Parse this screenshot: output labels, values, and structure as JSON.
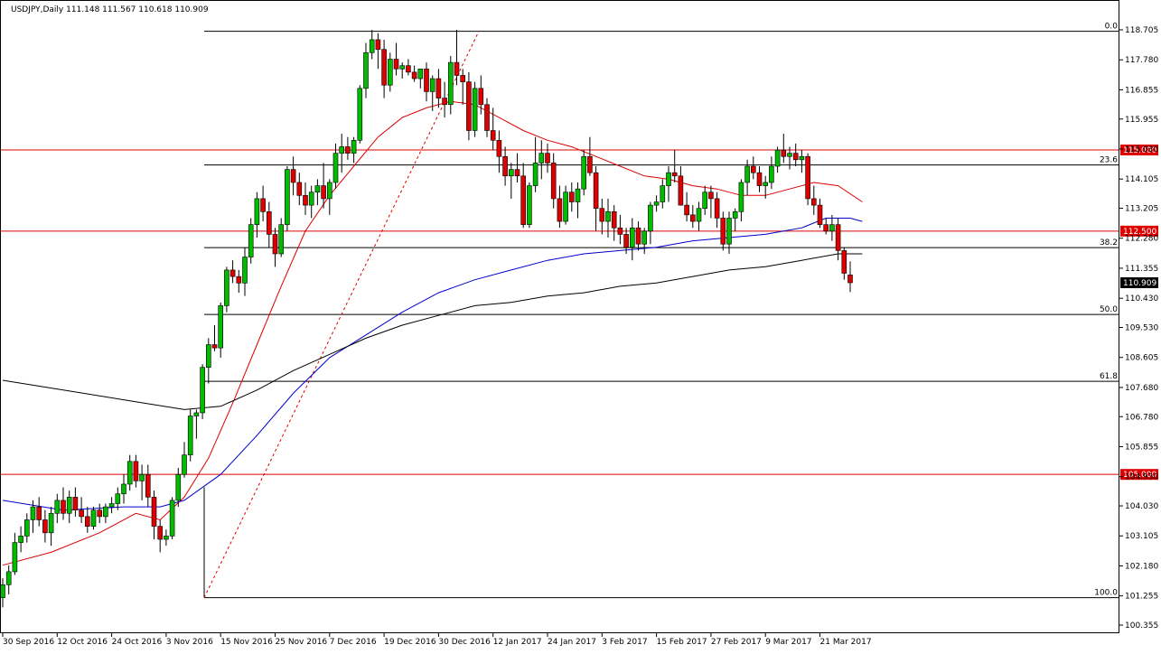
{
  "chart_data": {
    "type": "candlestick",
    "title": "USDJPY,Daily  111.148 111.567 110.618 110.909",
    "symbol": "USDJPY",
    "timeframe": "Daily",
    "ohlc_header": {
      "open": 111.148,
      "high": 111.567,
      "low": 110.618,
      "close": 110.909
    },
    "ylim": [
      100.0,
      118.9
    ],
    "y_tick_labels": [
      "118.705",
      "117.780",
      "116.855",
      "115.955",
      "115.030",
      "114.105",
      "113.205",
      "112.280",
      "111.355",
      "110.430",
      "109.530",
      "108.605",
      "107.680",
      "106.780",
      "105.855",
      "104.930",
      "104.030",
      "103.105",
      "102.180",
      "101.255",
      "100.355"
    ],
    "x_tick_labels": [
      "30 Sep 2016",
      "12 Oct 2016",
      "24 Oct 2016",
      "3 Nov 2016",
      "15 Nov 2016",
      "25 Nov 2016",
      "7 Dec 2016",
      "19 Dec 2016",
      "30 Dec 2016",
      "12 Jan 2017",
      "24 Jan 2017",
      "3 Feb 2017",
      "15 Feb 2017",
      "27 Feb 2017",
      "9 Mar 2017",
      "21 Mar 2017"
    ],
    "bull_color": "#00bb00",
    "bear_color": "#dd0000",
    "candles": [
      [
        101.2,
        101.8,
        100.9,
        101.6
      ],
      [
        101.6,
        102.2,
        101.3,
        102.0
      ],
      [
        102.0,
        103.2,
        101.9,
        102.9
      ],
      [
        102.9,
        103.4,
        102.6,
        103.1
      ],
      [
        103.1,
        103.8,
        102.9,
        103.6
      ],
      [
        103.6,
        104.2,
        103.2,
        104.0
      ],
      [
        104.0,
        104.3,
        103.4,
        103.6
      ],
      [
        103.6,
        103.9,
        102.9,
        103.2
      ],
      [
        103.2,
        104.0,
        102.8,
        103.8
      ],
      [
        103.8,
        104.4,
        103.5,
        104.2
      ],
      [
        104.2,
        104.6,
        103.6,
        103.8
      ],
      [
        103.8,
        104.5,
        103.5,
        104.3
      ],
      [
        104.3,
        104.6,
        103.7,
        103.9
      ],
      [
        103.9,
        104.3,
        103.5,
        103.7
      ],
      [
        103.7,
        104.0,
        103.2,
        103.4
      ],
      [
        103.4,
        104.0,
        103.3,
        103.9
      ],
      [
        103.9,
        104.1,
        103.5,
        103.7
      ],
      [
        103.7,
        104.1,
        103.5,
        104.0
      ],
      [
        104.0,
        104.3,
        103.8,
        104.1
      ],
      [
        104.1,
        104.6,
        103.9,
        104.4
      ],
      [
        104.4,
        105.0,
        104.1,
        104.7
      ],
      [
        104.7,
        105.6,
        104.5,
        105.4
      ],
      [
        105.4,
        105.6,
        104.6,
        104.8
      ],
      [
        104.8,
        105.3,
        104.2,
        105.0
      ],
      [
        105.0,
        105.3,
        104.0,
        104.3
      ],
      [
        104.3,
        104.5,
        103.0,
        103.4
      ],
      [
        103.4,
        103.6,
        102.6,
        103.0
      ],
      [
        103.0,
        103.3,
        102.8,
        103.1
      ],
      [
        103.1,
        104.3,
        103.0,
        104.2
      ],
      [
        104.2,
        105.2,
        104.0,
        105.0
      ],
      [
        105.0,
        106.0,
        104.9,
        105.6
      ],
      [
        105.6,
        107.0,
        105.4,
        106.8
      ],
      [
        106.8,
        107.0,
        106.1,
        106.9
      ],
      [
        106.9,
        108.4,
        106.7,
        108.3
      ],
      [
        108.3,
        109.2,
        107.8,
        109.0
      ],
      [
        109.0,
        109.6,
        108.8,
        108.9
      ],
      [
        108.9,
        110.3,
        108.6,
        110.2
      ],
      [
        110.2,
        111.4,
        110.0,
        111.3
      ],
      [
        111.3,
        111.6,
        110.9,
        111.1
      ],
      [
        111.1,
        111.3,
        110.6,
        110.9
      ],
      [
        110.9,
        112.0,
        110.5,
        111.7
      ],
      [
        111.7,
        112.9,
        111.5,
        112.7
      ],
      [
        112.7,
        113.7,
        112.3,
        113.5
      ],
      [
        113.5,
        113.9,
        112.8,
        113.1
      ],
      [
        113.1,
        113.4,
        112.0,
        112.4
      ],
      [
        112.4,
        112.6,
        111.4,
        111.8
      ],
      [
        111.8,
        112.9,
        111.7,
        112.7
      ],
      [
        112.7,
        114.5,
        112.5,
        114.4
      ],
      [
        114.4,
        114.8,
        113.6,
        114.0
      ],
      [
        114.0,
        114.3,
        113.3,
        113.6
      ],
      [
        113.6,
        114.0,
        113.0,
        113.3
      ],
      [
        113.3,
        113.9,
        112.9,
        113.7
      ],
      [
        113.7,
        114.1,
        113.3,
        113.9
      ],
      [
        113.9,
        114.6,
        113.2,
        113.5
      ],
      [
        113.5,
        114.1,
        113.0,
        114.0
      ],
      [
        114.0,
        115.2,
        113.8,
        114.9
      ],
      [
        114.9,
        115.5,
        114.3,
        115.1
      ],
      [
        115.1,
        115.4,
        114.7,
        114.9
      ],
      [
        114.9,
        115.4,
        114.6,
        115.3
      ],
      [
        115.3,
        117.0,
        115.2,
        116.9
      ],
      [
        116.9,
        118.3,
        116.6,
        118.0
      ],
      [
        118.0,
        118.7,
        117.8,
        118.4
      ],
      [
        118.4,
        118.6,
        117.5,
        118.1
      ],
      [
        118.1,
        118.4,
        116.6,
        117.0
      ],
      [
        117.0,
        118.0,
        116.8,
        117.8
      ],
      [
        117.8,
        118.3,
        117.3,
        117.5
      ],
      [
        117.5,
        117.7,
        117.2,
        117.6
      ],
      [
        117.6,
        117.8,
        117.3,
        117.4
      ],
      [
        117.4,
        117.6,
        117.1,
        117.2
      ],
      [
        117.2,
        117.5,
        116.9,
        117.5
      ],
      [
        117.5,
        117.7,
        116.5,
        116.8
      ],
      [
        116.8,
        117.3,
        116.2,
        117.2
      ],
      [
        117.2,
        117.5,
        116.3,
        116.6
      ],
      [
        116.6,
        117.1,
        116.0,
        116.4
      ],
      [
        116.4,
        117.9,
        116.1,
        117.7
      ],
      [
        117.7,
        118.7,
        117.0,
        117.3
      ],
      [
        117.3,
        117.5,
        116.4,
        117.1
      ],
      [
        117.1,
        117.4,
        115.3,
        115.6
      ],
      [
        115.6,
        117.1,
        115.4,
        116.9
      ],
      [
        116.9,
        117.3,
        116.1,
        116.4
      ],
      [
        116.4,
        116.6,
        115.4,
        115.6
      ],
      [
        115.6,
        116.3,
        115.0,
        115.3
      ],
      [
        115.3,
        115.6,
        114.3,
        114.8
      ],
      [
        114.8,
        115.1,
        113.9,
        114.2
      ],
      [
        114.2,
        114.6,
        113.5,
        114.4
      ],
      [
        114.4,
        114.9,
        114.0,
        114.2
      ],
      [
        114.2,
        114.6,
        112.6,
        112.7
      ],
      [
        112.7,
        114.0,
        112.6,
        113.9
      ],
      [
        113.9,
        115.4,
        113.7,
        114.6
      ],
      [
        114.6,
        115.3,
        114.1,
        114.9
      ],
      [
        114.9,
        115.2,
        114.3,
        114.6
      ],
      [
        114.6,
        114.9,
        113.2,
        113.5
      ],
      [
        113.5,
        113.9,
        112.6,
        112.8
      ],
      [
        112.8,
        113.9,
        112.7,
        113.7
      ],
      [
        113.7,
        114.0,
        113.1,
        113.4
      ],
      [
        113.4,
        114.0,
        112.9,
        113.8
      ],
      [
        113.8,
        115.0,
        113.6,
        114.8
      ],
      [
        114.8,
        115.4,
        114.2,
        114.3
      ],
      [
        114.3,
        114.5,
        112.5,
        113.2
      ],
      [
        113.2,
        113.5,
        112.4,
        112.8
      ],
      [
        112.8,
        113.5,
        112.3,
        113.1
      ],
      [
        113.1,
        113.3,
        112.2,
        112.6
      ],
      [
        112.6,
        113.0,
        112.1,
        112.4
      ],
      [
        112.4,
        112.6,
        111.8,
        112.0
      ],
      [
        112.0,
        112.9,
        111.6,
        112.6
      ],
      [
        112.6,
        112.8,
        111.9,
        112.1
      ],
      [
        112.1,
        112.6,
        111.8,
        112.5
      ],
      [
        112.5,
        113.4,
        112.1,
        113.3
      ],
      [
        113.3,
        113.6,
        113.1,
        113.4
      ],
      [
        113.4,
        114.1,
        113.2,
        113.9
      ],
      [
        113.9,
        114.5,
        113.4,
        114.3
      ],
      [
        114.3,
        115.0,
        114.0,
        114.2
      ],
      [
        114.2,
        114.5,
        113.3,
        113.3
      ],
      [
        113.3,
        113.7,
        112.8,
        113.0
      ],
      [
        113.0,
        113.3,
        112.6,
        112.8
      ],
      [
        112.8,
        113.4,
        112.5,
        113.2
      ],
      [
        113.2,
        113.9,
        113.0,
        113.7
      ],
      [
        113.7,
        113.9,
        112.9,
        113.5
      ],
      [
        113.5,
        113.7,
        112.6,
        112.9
      ],
      [
        112.9,
        113.1,
        111.9,
        112.1
      ],
      [
        112.1,
        113.1,
        111.8,
        112.9
      ],
      [
        112.9,
        113.2,
        112.5,
        113.1
      ],
      [
        113.1,
        114.1,
        112.8,
        114.0
      ],
      [
        114.0,
        114.7,
        113.6,
        114.5
      ],
      [
        114.5,
        114.8,
        114.1,
        114.3
      ],
      [
        114.3,
        114.5,
        113.7,
        113.9
      ],
      [
        113.9,
        114.2,
        113.5,
        114.0
      ],
      [
        114.0,
        114.8,
        113.8,
        114.5
      ],
      [
        114.5,
        115.1,
        114.3,
        115.0
      ],
      [
        115.0,
        115.5,
        114.6,
        114.8
      ],
      [
        114.8,
        115.1,
        114.4,
        114.9
      ],
      [
        114.9,
        115.2,
        114.5,
        114.7
      ],
      [
        114.7,
        115.0,
        114.3,
        114.8
      ],
      [
        114.8,
        114.9,
        113.3,
        113.5
      ],
      [
        113.5,
        113.9,
        113.0,
        113.3
      ],
      [
        113.3,
        113.5,
        112.6,
        112.7
      ],
      [
        112.7,
        112.9,
        112.4,
        112.5
      ],
      [
        112.5,
        113.0,
        112.2,
        112.7
      ],
      [
        112.7,
        112.9,
        111.6,
        111.9
      ],
      [
        111.9,
        112.0,
        111.0,
        111.2
      ],
      [
        111.148,
        111.567,
        110.618,
        110.909
      ]
    ],
    "series": [
      {
        "name": "",
        "color": "#dd0000",
        "points": [
          [
            0,
            102.2
          ],
          [
            8,
            102.6
          ],
          [
            16,
            103.2
          ],
          [
            22,
            103.8
          ],
          [
            26,
            103.6
          ],
          [
            30,
            104.3
          ],
          [
            34,
            105.5
          ],
          [
            38,
            107.2
          ],
          [
            42,
            109.0
          ],
          [
            46,
            110.8
          ],
          [
            50,
            112.5
          ],
          [
            54,
            113.6
          ],
          [
            58,
            114.5
          ],
          [
            62,
            115.4
          ],
          [
            66,
            116.0
          ],
          [
            70,
            116.3
          ],
          [
            74,
            116.5
          ],
          [
            78,
            116.4
          ],
          [
            82,
            116.0
          ],
          [
            86,
            115.6
          ],
          [
            90,
            115.3
          ],
          [
            94,
            115.1
          ],
          [
            98,
            114.8
          ],
          [
            102,
            114.5
          ],
          [
            106,
            114.2
          ],
          [
            110,
            114.1
          ],
          [
            114,
            113.9
          ],
          [
            118,
            113.8
          ],
          [
            122,
            113.6
          ],
          [
            126,
            113.6
          ],
          [
            130,
            113.8
          ],
          [
            134,
            114.0
          ],
          [
            138,
            113.9
          ],
          [
            142,
            113.4
          ]
        ]
      },
      {
        "name": "",
        "color": "#0000cc",
        "points": [
          [
            0,
            104.2
          ],
          [
            10,
            103.9
          ],
          [
            20,
            104.0
          ],
          [
            26,
            104.0
          ],
          [
            30,
            104.2
          ],
          [
            36,
            105.0
          ],
          [
            42,
            106.2
          ],
          [
            48,
            107.5
          ],
          [
            54,
            108.6
          ],
          [
            60,
            109.3
          ],
          [
            66,
            110.0
          ],
          [
            72,
            110.6
          ],
          [
            78,
            111.0
          ],
          [
            84,
            111.3
          ],
          [
            90,
            111.6
          ],
          [
            96,
            111.8
          ],
          [
            102,
            111.9
          ],
          [
            108,
            112.0
          ],
          [
            114,
            112.2
          ],
          [
            120,
            112.3
          ],
          [
            126,
            112.4
          ],
          [
            132,
            112.6
          ],
          [
            136,
            112.9
          ],
          [
            140,
            112.9
          ],
          [
            142,
            112.8
          ]
        ]
      },
      {
        "name": "",
        "color": "#000000",
        "points": [
          [
            0,
            107.9
          ],
          [
            10,
            107.6
          ],
          [
            20,
            107.3
          ],
          [
            30,
            107.0
          ],
          [
            36,
            107.1
          ],
          [
            42,
            107.6
          ],
          [
            48,
            108.2
          ],
          [
            54,
            108.7
          ],
          [
            60,
            109.2
          ],
          [
            66,
            109.6
          ],
          [
            72,
            109.9
          ],
          [
            78,
            110.2
          ],
          [
            84,
            110.3
          ],
          [
            90,
            110.5
          ],
          [
            96,
            110.6
          ],
          [
            102,
            110.8
          ],
          [
            108,
            110.9
          ],
          [
            114,
            111.1
          ],
          [
            120,
            111.3
          ],
          [
            126,
            111.4
          ],
          [
            132,
            111.6
          ],
          [
            138,
            111.8
          ],
          [
            142,
            111.8
          ]
        ]
      }
    ],
    "horizontal_levels": [
      {
        "value": 115.0,
        "label": "115.000",
        "color": "#dd0000"
      },
      {
        "value": 112.5,
        "label": "112.500",
        "color": "#dd0000"
      },
      {
        "value": 105.0,
        "label": "105.000",
        "color": "#dd0000"
      }
    ],
    "fibonacci": {
      "high": 118.66,
      "low": 101.2,
      "levels": [
        {
          "ratio": 0.0,
          "label": "0.0"
        },
        {
          "ratio": 0.236,
          "label": "23.6"
        },
        {
          "ratio": 0.382,
          "label": "38.2"
        },
        {
          "ratio": 0.5,
          "label": "50.0"
        },
        {
          "ratio": 0.618,
          "label": "61.8"
        },
        {
          "ratio": 1.0,
          "label": "100.0"
        }
      ]
    },
    "current_price": {
      "value": 110.909,
      "label": "110.909"
    }
  }
}
